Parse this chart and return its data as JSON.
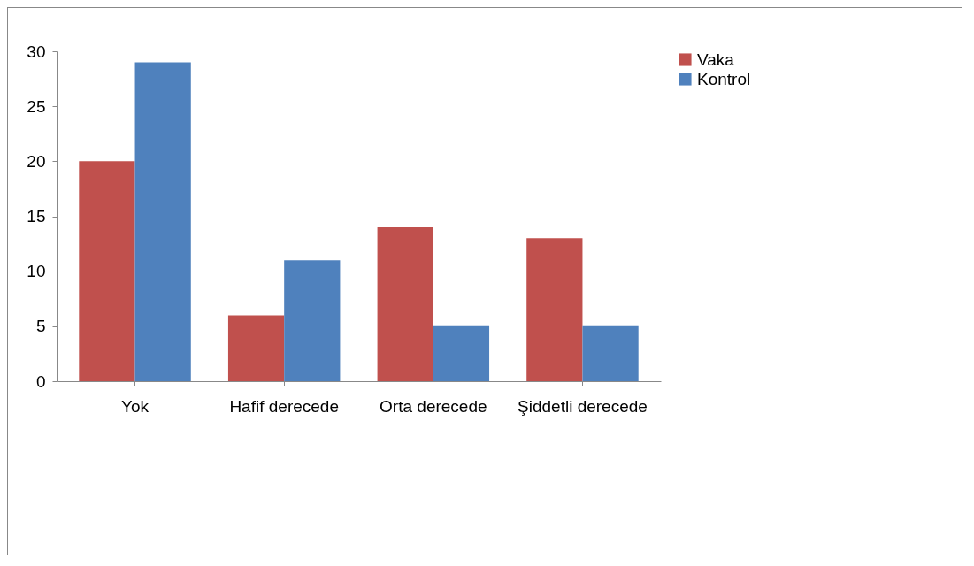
{
  "chart_data": {
    "type": "bar",
    "categories": [
      "Yok",
      "Hafif derecede",
      "Orta derecede",
      "Şiddetli derecede"
    ],
    "series": [
      {
        "name": "Vaka",
        "color": "#c0504d",
        "values": [
          20,
          6,
          14,
          13
        ]
      },
      {
        "name": "Kontrol",
        "color": "#4f81bd",
        "values": [
          29,
          11,
          5,
          5
        ]
      }
    ],
    "ylim": [
      0,
      30
    ],
    "yticks": [
      0,
      5,
      10,
      15,
      20,
      25,
      30
    ],
    "grid": false,
    "legend": "right"
  }
}
